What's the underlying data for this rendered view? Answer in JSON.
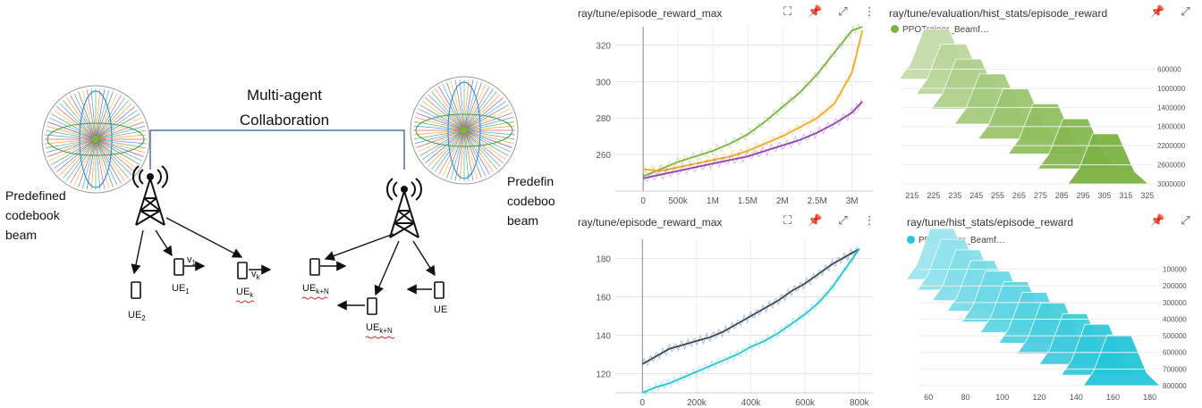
{
  "diagram": {
    "title_line1": "Multi-agent",
    "title_line2": "Collaboration",
    "left_label": [
      "Predefined",
      "codebook",
      "beam"
    ],
    "right_label": [
      "Predefin",
      "codeboo",
      "beam"
    ],
    "ue_left": [
      {
        "base": "UE",
        "sub": "2"
      },
      {
        "base": "UE",
        "sub": "1"
      },
      {
        "base": "UE",
        "sub": "k"
      }
    ],
    "ue_right": [
      {
        "base": "UE",
        "sub": "k+N"
      },
      {
        "base": "UE",
        "sub": "k+N"
      },
      {
        "base": "UE",
        "sub": ""
      }
    ],
    "velocity": [
      {
        "base": "v",
        "sub": "1"
      },
      {
        "base": "v",
        "sub": "k"
      }
    ]
  },
  "panels": [
    {
      "title": "ray/tune/episode_reward_max",
      "icons": [
        "expand-icon",
        "pin-icon",
        "fullscreen-icon",
        "more-icon"
      ],
      "chart_data": {
        "type": "line",
        "x_ticks": [
          "0",
          "500k",
          "1M",
          "1.5M",
          "2M",
          "2.5M",
          "3M"
        ],
        "x_tick_values": [
          0,
          500000,
          1000000,
          1500000,
          2000000,
          2500000,
          3000000
        ],
        "y_ticks": [
          "260",
          "280",
          "300",
          "320"
        ],
        "y_tick_values": [
          260,
          280,
          300,
          320
        ],
        "xlim": [
          -400000,
          3300000
        ],
        "ylim": [
          240,
          330
        ],
        "series": [
          {
            "color": "#7cb342",
            "x": [
              0,
              250000,
              500000,
              750000,
              1000000,
              1250000,
              1500000,
              1750000,
              2000000,
              2250000,
              2500000,
              2750000,
              3000000,
              3150000
            ],
            "y": [
              248,
              252,
              256,
              259,
              262,
              266,
              271,
              278,
              286,
              294,
              304,
              316,
              328,
              330
            ]
          },
          {
            "color": "#f9a825",
            "x": [
              0,
              250000,
              500000,
              750000,
              1000000,
              1250000,
              1500000,
              1750000,
              2000000,
              2250000,
              2500000,
              2750000,
              3000000,
              3150000
            ],
            "y": [
              252,
              251,
              253,
              255,
              257,
              259,
              262,
              266,
              270,
              275,
              280,
              288,
              305,
              328
            ]
          },
          {
            "color": "#8e44ad",
            "x": [
              0,
              250000,
              500000,
              750000,
              1000000,
              1250000,
              1500000,
              1750000,
              2000000,
              2250000,
              2500000,
              2750000,
              3000000,
              3150000
            ],
            "y": [
              247,
              249,
              251,
              253,
              255,
              257,
              259,
              262,
              265,
              268,
              272,
              277,
              283,
              289
            ]
          }
        ]
      }
    },
    {
      "title": "ray/tune/episode_reward_max",
      "icons": [
        "expand-icon",
        "pin-icon",
        "fullscreen-icon",
        "more-icon"
      ],
      "chart_data": {
        "type": "line",
        "x_ticks": [
          "0",
          "200k",
          "400k",
          "600k",
          "800k"
        ],
        "x_tick_values": [
          0,
          200000,
          400000,
          600000,
          800000
        ],
        "y_ticks": [
          "120",
          "140",
          "160",
          "180"
        ],
        "y_tick_values": [
          120,
          140,
          160,
          180
        ],
        "xlim": [
          -100000,
          850000
        ],
        "ylim": [
          110,
          190
        ],
        "series": [
          {
            "color": "#34495e",
            "x": [
              0,
              50000,
              100000,
              150000,
              200000,
              250000,
              300000,
              350000,
              400000,
              450000,
              500000,
              550000,
              600000,
              650000,
              700000,
              750000,
              800000
            ],
            "y": [
              125,
              129,
              133,
              135,
              137,
              139,
              142,
              146,
              150,
              154,
              158,
              163,
              167,
              172,
              177,
              181,
              185
            ]
          },
          {
            "color": "#26c6da",
            "x": [
              0,
              50000,
              100000,
              150000,
              200000,
              250000,
              300000,
              350000,
              400000,
              450000,
              500000,
              550000,
              600000,
              650000,
              700000,
              750000,
              800000
            ],
            "y": [
              110,
              113,
              115,
              118,
              121,
              124,
              127,
              130,
              134,
              137,
              141,
              146,
              151,
              157,
              165,
              175,
              185
            ]
          }
        ]
      }
    },
    {
      "title": "ray/tune/evaluation/hist_stats/episode_reward",
      "legend": "PPOTrainer_Beamf…",
      "icons": [
        "pin-icon",
        "fullscreen-icon"
      ],
      "chart_data": {
        "type": "area",
        "color": "#7cb342",
        "x_ticks": [
          "215",
          "225",
          "235",
          "245",
          "255",
          "265",
          "275",
          "285",
          "295",
          "305",
          "315",
          "325"
        ],
        "x_tick_values": [
          215,
          225,
          235,
          245,
          255,
          265,
          275,
          285,
          295,
          305,
          315,
          325
        ],
        "steps": [
          "600000",
          "1000000",
          "1400000",
          "1800000",
          "2200000",
          "2600000",
          "3000000"
        ],
        "xlim": [
          210,
          328
        ],
        "peaks": [
          227,
          235,
          242,
          253,
          264,
          278,
          292,
          306
        ]
      }
    },
    {
      "title": "ray/tune/hist_stats/episode_reward",
      "legend": "PPOTrainer_Beamf…",
      "icons": [
        "pin-icon",
        "fullscreen-icon"
      ],
      "chart_data": {
        "type": "area",
        "color": "#26c6da",
        "x_ticks": [
          "60",
          "80",
          "100",
          "120",
          "140",
          "160",
          "180"
        ],
        "x_tick_values": [
          60,
          80,
          100,
          120,
          140,
          160,
          180
        ],
        "steps": [
          "100000",
          "200000",
          "300000",
          "400000",
          "500000",
          "600000",
          "700000",
          "800000"
        ],
        "xlim": [
          55,
          185
        ],
        "peaks": [
          68,
          74,
          82,
          90,
          98,
          108,
          118,
          128,
          140,
          152,
          164
        ]
      }
    }
  ]
}
